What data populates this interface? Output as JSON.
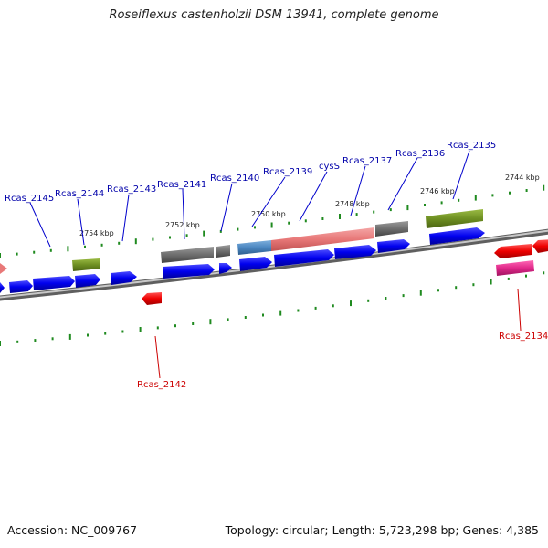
{
  "title": "Roseiflexus castenholzii DSM 13941, complete genome",
  "footer": {
    "accession": "Accession: NC_009767",
    "topology": "Topology: circular; Length: 5,723,298 bp; Genes: 4,385"
  },
  "colors": {
    "cds_forward": "#0000ee",
    "cds_reverse": "#ee0000",
    "backbone": "#8a8a8a",
    "tick": "#1f8a1f",
    "label_forward": "#0000aa",
    "label_reverse": "#cc0000",
    "kbp_text": "#222222"
  },
  "scale": {
    "unit_label": "kbp",
    "markers": [
      "2744 kbp",
      "2746 kbp",
      "2748 kbp",
      "2750 kbp",
      "2752 kbp",
      "2754 kbp"
    ]
  },
  "gene_labels": [
    {
      "text": "Rcas_2145",
      "strand": "+"
    },
    {
      "text": "Rcas_2144",
      "strand": "+"
    },
    {
      "text": "Rcas_2143",
      "strand": "+"
    },
    {
      "text": "Rcas_2141",
      "strand": "+"
    },
    {
      "text": "Rcas_2140",
      "strand": "+"
    },
    {
      "text": "Rcas_2139",
      "strand": "+"
    },
    {
      "text": "cysS",
      "strand": "+"
    },
    {
      "text": "Rcas_2137",
      "strand": "+"
    },
    {
      "text": "Rcas_2136",
      "strand": "+"
    },
    {
      "text": "Rcas_2135",
      "strand": "+"
    },
    {
      "text": "Rcas_2142",
      "strand": "-"
    },
    {
      "text": "Rcas_2134",
      "strand": "-"
    }
  ],
  "feature_colors": [
    "#0000ee",
    "#ee0000",
    "#777777",
    "#6e8f22",
    "#4a86c0",
    "#e87878",
    "#e0288a"
  ]
}
